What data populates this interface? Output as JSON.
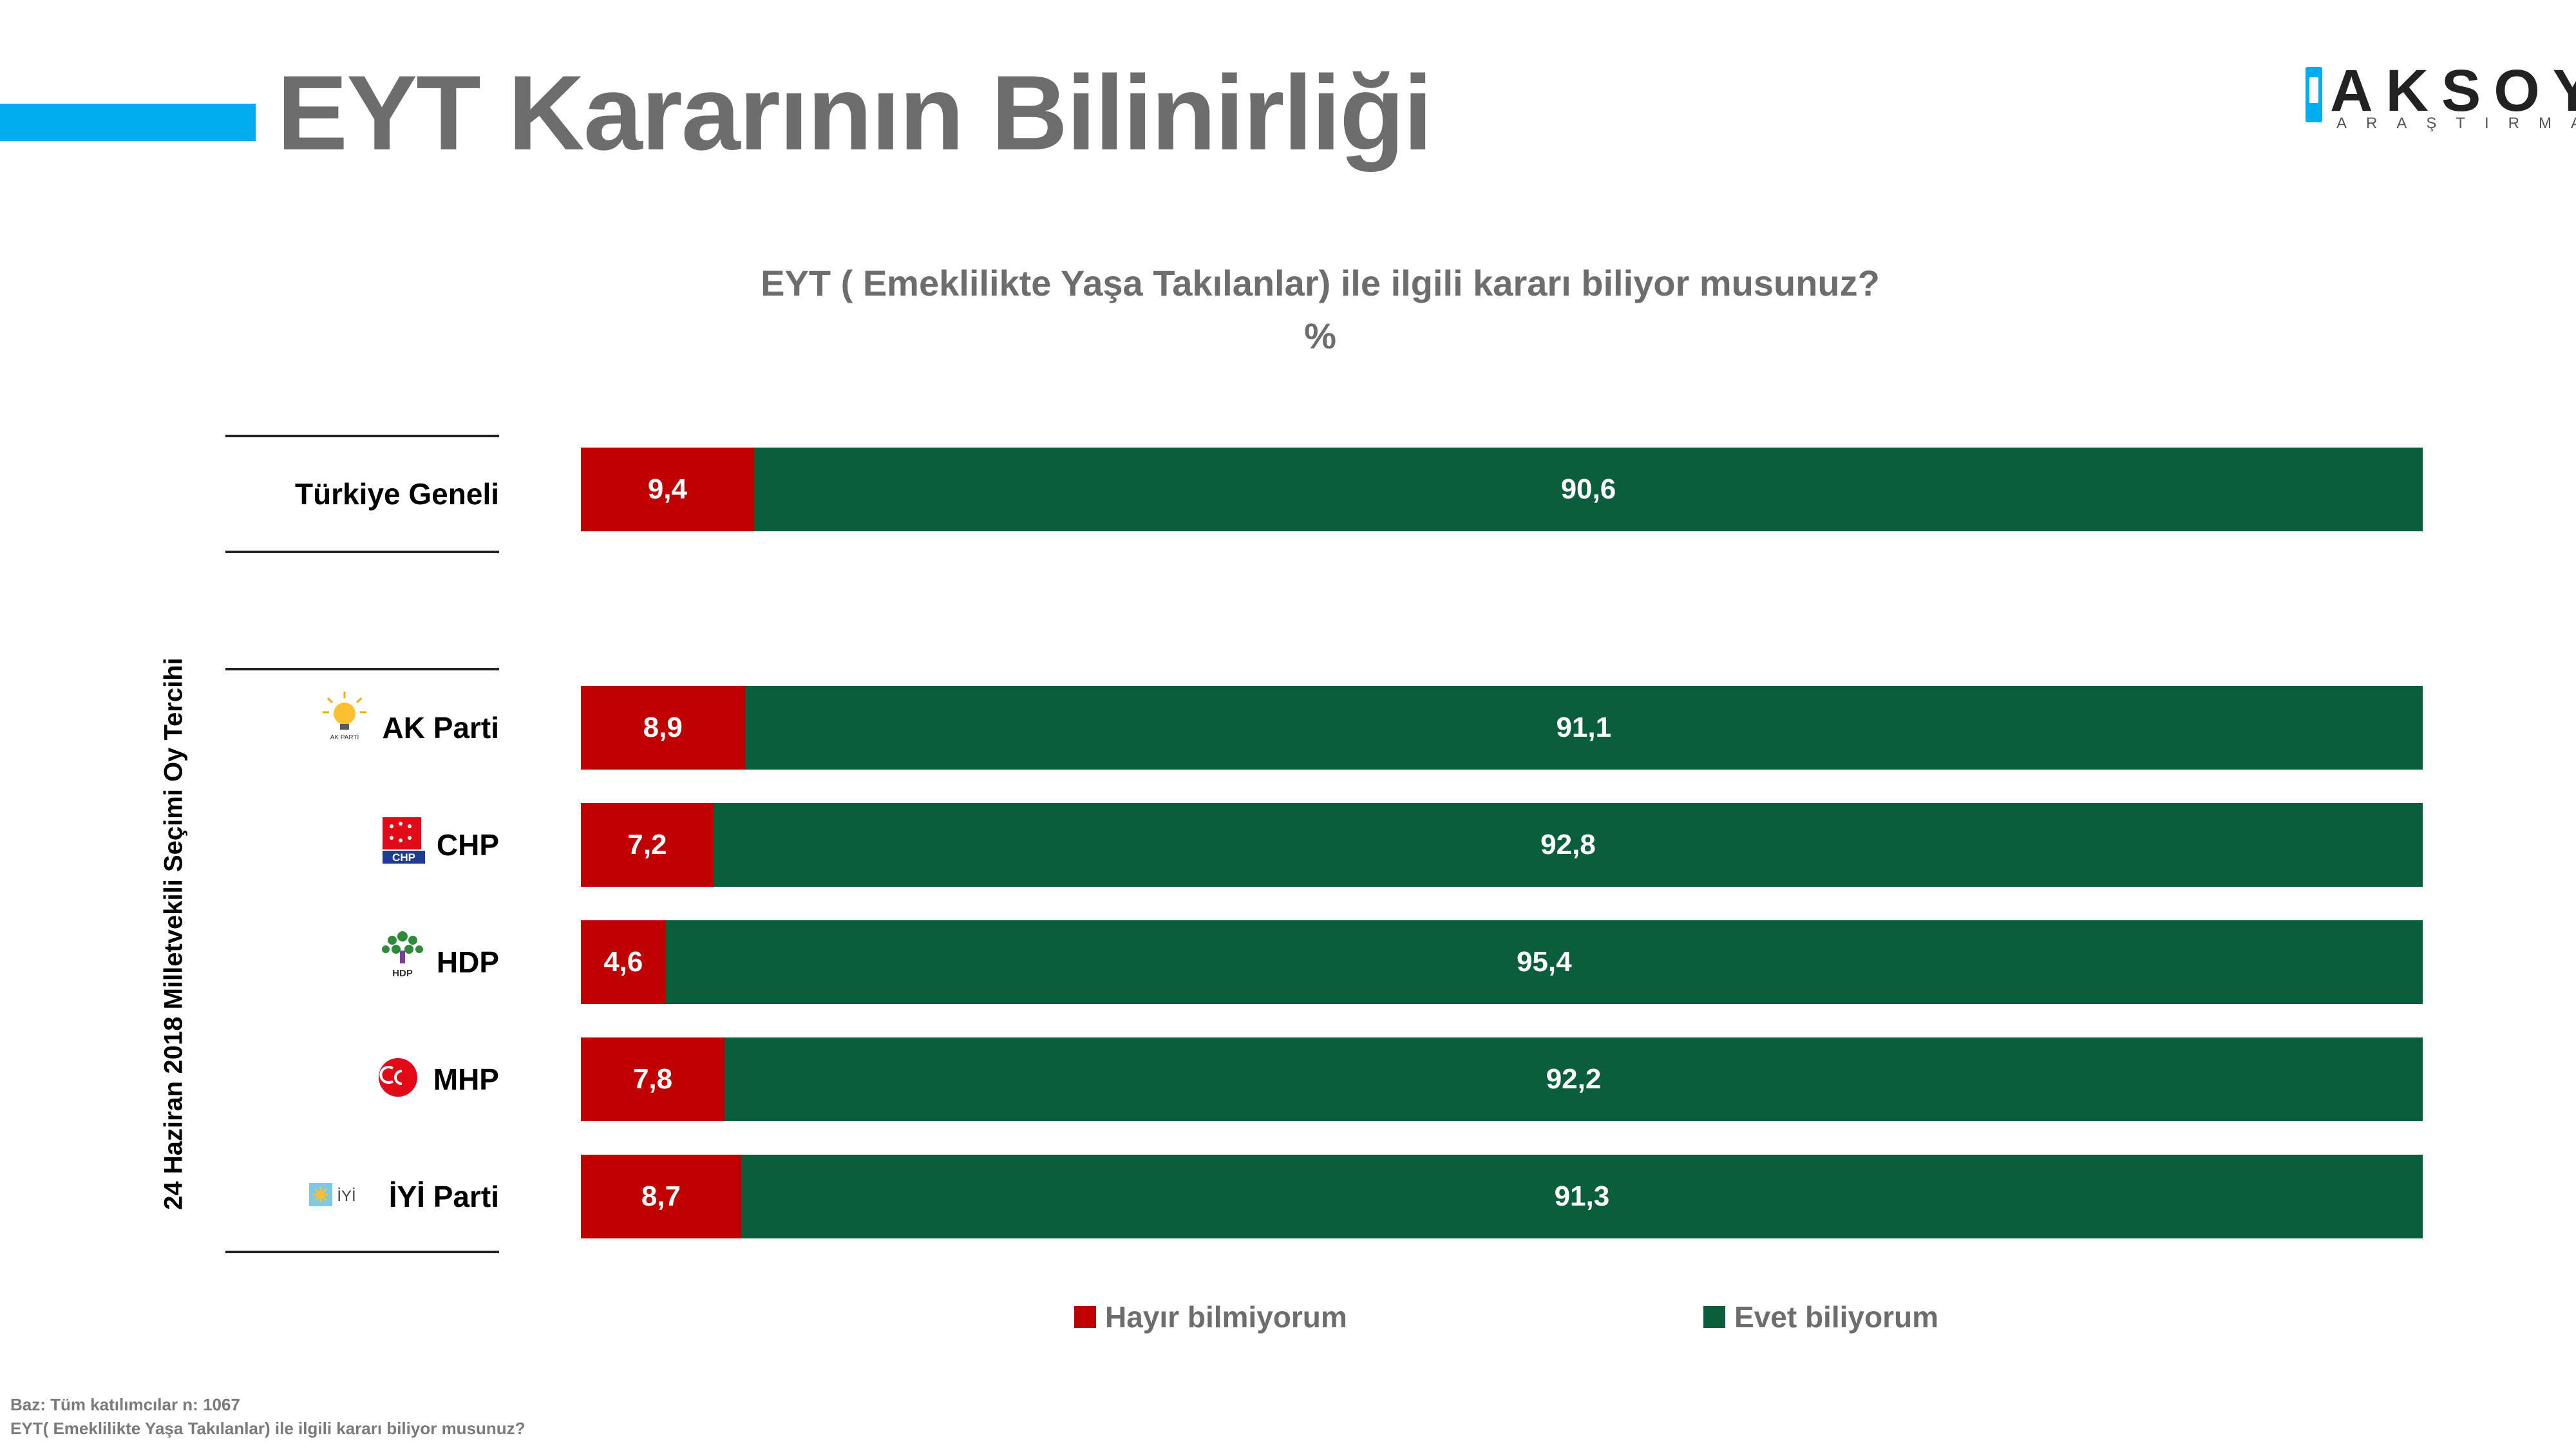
{
  "page": {
    "title": "EYT Kararının Bilinirliği",
    "brand": {
      "name": "AKSOY",
      "subtitle": "ARAŞTIRMA",
      "accent_color": "#00aeef"
    }
  },
  "chart_data": {
    "type": "bar",
    "stacked": true,
    "orientation": "horizontal",
    "title": "EYT ( Emeklilikte Yaşa Takılanlar) ile ilgili kararı biliyor musunuz?",
    "unit": "%",
    "group_label": "24 Haziran 2018 Milletvekili Seçimi Oy Tercihi",
    "categories": [
      "Türkiye Geneli",
      "AK Parti",
      "CHP",
      "HDP",
      "MHP",
      "İYİ Parti"
    ],
    "category_icons": [
      "",
      "ak-parti-logo-icon",
      "chp-logo-icon",
      "hdp-logo-icon",
      "mhp-logo-icon",
      "iyi-parti-logo-icon"
    ],
    "series": [
      {
        "name": "Hayır bilmiyorum",
        "color": "#c00000",
        "values": [
          9.4,
          8.9,
          7.2,
          4.6,
          7.8,
          8.7
        ]
      },
      {
        "name": "Evet biliyorum",
        "color": "#0b5e3b",
        "values": [
          90.6,
          91.1,
          92.8,
          95.4,
          92.2,
          91.3
        ]
      }
    ],
    "xlim": [
      0,
      100
    ],
    "legend": "bottom",
    "grid": false
  },
  "footnotes": [
    "Baz: Tüm katılımcılar n: 1067",
    "EYT( Emeklilikte Yaşa Takılanlar) ile ilgili kararı biliyor musunuz?"
  ]
}
